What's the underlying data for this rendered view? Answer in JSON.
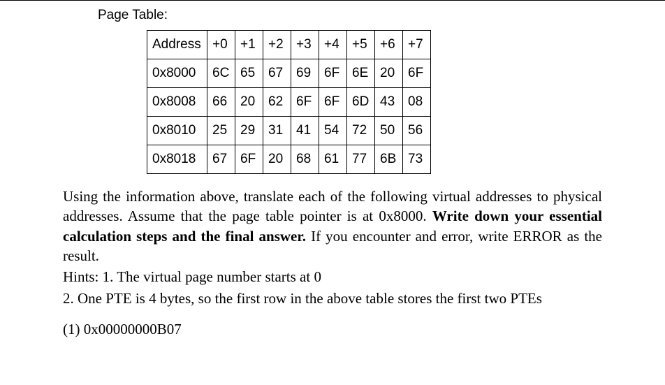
{
  "title": "Page Table:",
  "table": {
    "header": [
      "Address",
      "+0",
      "+1",
      "+2",
      "+3",
      "+4",
      "+5",
      "+6",
      "+7"
    ],
    "rows": [
      [
        "0x8000",
        "6C",
        "65",
        "67",
        "69",
        "6F",
        "6E",
        "20",
        "6F"
      ],
      [
        "0x8008",
        "66",
        "20",
        "62",
        "6F",
        "6F",
        "6D",
        "43",
        "08"
      ],
      [
        "0x8010",
        "25",
        "29",
        "31",
        "41",
        "54",
        "72",
        "50",
        "56"
      ],
      [
        "0x8018",
        "67",
        "6F",
        "20",
        "68",
        "61",
        "77",
        "6B",
        "73"
      ]
    ]
  },
  "para1_a": "Using the information above, translate each of the following virtual addresses to physical addresses. Assume that the page table pointer is at 0x8000. ",
  "para1_bold": "Write down your essential calculation steps and the final answer.",
  "para1_b": " If you encounter and error, write ERROR as the result.",
  "hint1": "Hints:   1. The virtual page number starts at 0",
  "hint2": "2. One PTE is 4 bytes, so the first row in the above table stores the first two PTEs",
  "q1": "(1) 0x00000000B07"
}
